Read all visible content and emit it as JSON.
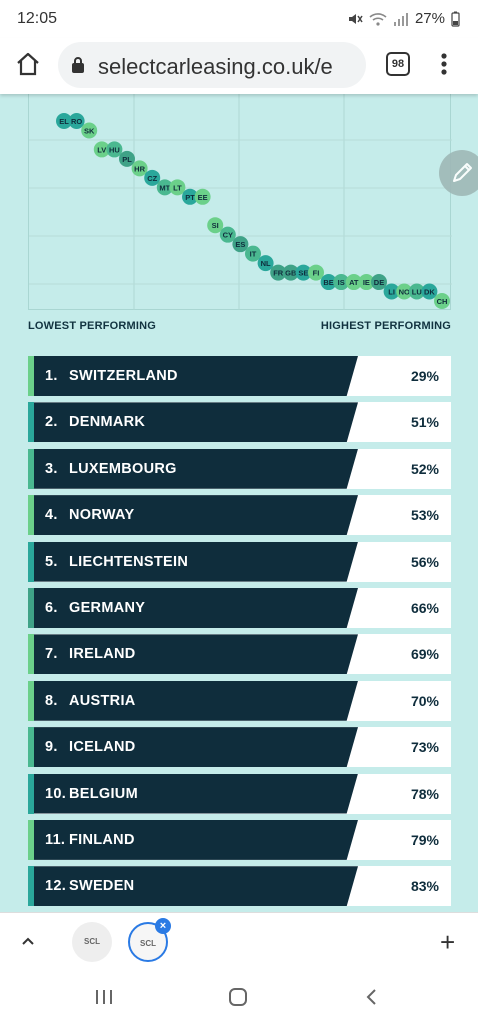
{
  "status": {
    "time": "12:05",
    "battery": "27%"
  },
  "browser": {
    "url": "selectcarleasing.co.uk/e",
    "tab_count": "98"
  },
  "chart_data": {
    "type": "scatter",
    "title": "",
    "xlabel_left": "LOWEST PERFORMING",
    "xlabel_right": "HIGHEST PERFORMING",
    "grid": true,
    "points": [
      {
        "label": "EL",
        "x": 1,
        "y": 1,
        "color": "#2aa79b"
      },
      {
        "label": "RO",
        "x": 2,
        "y": 1,
        "color": "#2aa79b"
      },
      {
        "label": "SK",
        "x": 3,
        "y": 2,
        "color": "#6bd08a"
      },
      {
        "label": "LV",
        "x": 4,
        "y": 4,
        "color": "#6bd08a"
      },
      {
        "label": "HU",
        "x": 5,
        "y": 4,
        "color": "#4ab890"
      },
      {
        "label": "PL",
        "x": 6,
        "y": 5,
        "color": "#3fa287"
      },
      {
        "label": "HR",
        "x": 7,
        "y": 6,
        "color": "#6bd08a"
      },
      {
        "label": "CZ",
        "x": 8,
        "y": 7,
        "color": "#2aa79b"
      },
      {
        "label": "MT",
        "x": 9,
        "y": 8,
        "color": "#4ab890"
      },
      {
        "label": "LT",
        "x": 10,
        "y": 8,
        "color": "#6bd08a"
      },
      {
        "label": "PT",
        "x": 11,
        "y": 9,
        "color": "#2aa79b"
      },
      {
        "label": "EE",
        "x": 12,
        "y": 9,
        "color": "#6bd08a"
      },
      {
        "label": "SI",
        "x": 13,
        "y": 12,
        "color": "#6bd08a"
      },
      {
        "label": "CY",
        "x": 14,
        "y": 13,
        "color": "#4ab890"
      },
      {
        "label": "ES",
        "x": 15,
        "y": 14,
        "color": "#3fa287"
      },
      {
        "label": "IT",
        "x": 16,
        "y": 15,
        "color": "#4ab890"
      },
      {
        "label": "NL",
        "x": 17,
        "y": 16,
        "color": "#2aa79b"
      },
      {
        "label": "FR",
        "x": 18,
        "y": 17,
        "color": "#3fa287"
      },
      {
        "label": "GB",
        "x": 19,
        "y": 17,
        "color": "#3fa287"
      },
      {
        "label": "SE",
        "x": 20,
        "y": 17,
        "color": "#2aa79b"
      },
      {
        "label": "FI",
        "x": 21,
        "y": 17,
        "color": "#6bd08a"
      },
      {
        "label": "BE",
        "x": 22,
        "y": 18,
        "color": "#2aa79b"
      },
      {
        "label": "IS",
        "x": 23,
        "y": 18,
        "color": "#4ab890"
      },
      {
        "label": "AT",
        "x": 24,
        "y": 18,
        "color": "#6bd08a"
      },
      {
        "label": "IE",
        "x": 25,
        "y": 18,
        "color": "#6bd08a"
      },
      {
        "label": "DE",
        "x": 26,
        "y": 18,
        "color": "#3fa287"
      },
      {
        "label": "LI",
        "x": 27,
        "y": 19,
        "color": "#2aa79b"
      },
      {
        "label": "NO",
        "x": 28,
        "y": 19,
        "color": "#6bd08a"
      },
      {
        "label": "LU",
        "x": 29,
        "y": 19,
        "color": "#4ab890"
      },
      {
        "label": "DK",
        "x": 30,
        "y": 19,
        "color": "#2aa79b"
      },
      {
        "label": "CH",
        "x": 31,
        "y": 20,
        "color": "#6bd08a"
      }
    ]
  },
  "ranking": [
    {
      "rank": "1.",
      "country": "SWITZERLAND",
      "pct": "29%",
      "stripe": "#6bd08a"
    },
    {
      "rank": "2.",
      "country": "DENMARK",
      "pct": "51%",
      "stripe": "#2aa79b"
    },
    {
      "rank": "3.",
      "country": "LUXEMBOURG",
      "pct": "52%",
      "stripe": "#4ab890"
    },
    {
      "rank": "4.",
      "country": "NORWAY",
      "pct": "53%",
      "stripe": "#6bd08a"
    },
    {
      "rank": "5.",
      "country": "LIECHTENSTEIN",
      "pct": "56%",
      "stripe": "#2aa79b"
    },
    {
      "rank": "6.",
      "country": "GERMANY",
      "pct": "66%",
      "stripe": "#3fa287"
    },
    {
      "rank": "7.",
      "country": "IRELAND",
      "pct": "69%",
      "stripe": "#6bd08a"
    },
    {
      "rank": "8.",
      "country": "AUSTRIA",
      "pct": "70%",
      "stripe": "#6bd08a"
    },
    {
      "rank": "9.",
      "country": "ICELAND",
      "pct": "73%",
      "stripe": "#4ab890"
    },
    {
      "rank": "10.",
      "country": "BELGIUM",
      "pct": "78%",
      "stripe": "#2aa79b"
    },
    {
      "rank": "11.",
      "country": "FINLAND",
      "pct": "79%",
      "stripe": "#6bd08a"
    },
    {
      "rank": "12.",
      "country": "SWEDEN",
      "pct": "83%",
      "stripe": "#2aa79b"
    }
  ],
  "tabs": {
    "thumb_1": "SCL",
    "thumb_2": "SCL"
  },
  "icons": [
    "home-icon",
    "lock-icon",
    "menu-dots-icon",
    "edit-pencil-icon",
    "chevron-up-icon",
    "close-icon",
    "plus-icon",
    "recents-icon",
    "home-nav-icon",
    "back-icon"
  ]
}
